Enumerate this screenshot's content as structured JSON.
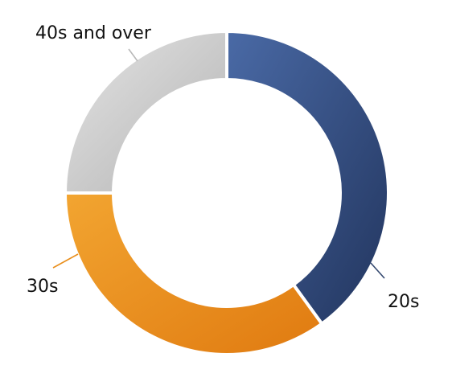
{
  "chart_data": {
    "type": "pie",
    "donut": true,
    "title": "",
    "categories": [
      "20s",
      "30s",
      "40s and over"
    ],
    "values": [
      40,
      35,
      25
    ],
    "colors": {
      "20s": [
        "#4a6aa6",
        "#22355e"
      ],
      "30s": [
        "#f2a531",
        "#e07a10"
      ],
      "40s and over": [
        "#e4e4e4",
        "#b3b3b3"
      ]
    },
    "leader_colors": {
      "20s": "#34486f",
      "30s": "#e98f1d",
      "40s and over": "#b9b9b9"
    },
    "legend": "none"
  }
}
